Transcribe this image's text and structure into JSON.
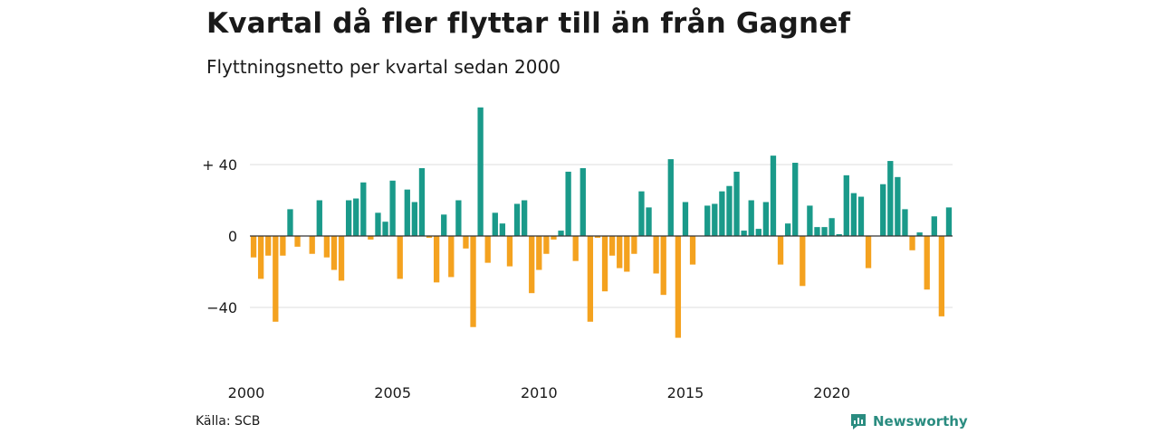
{
  "title": "Kvartal då fler flyttar till än från Gagnef",
  "subtitle": "Flyttningsnetto per kvartal sedan 2000",
  "source": "Källa: SCB",
  "brand": {
    "name": "Newsworthy"
  },
  "colors": {
    "positive": "#1a9a8a",
    "negative": "#f4a21f",
    "gridline": "#dddddd",
    "zeroline": "#333333",
    "brand": "#2a8c80"
  },
  "chart_data": {
    "type": "bar",
    "xlabel": "",
    "ylabel": "",
    "ylim": [
      -60,
      72
    ],
    "y_ticks": [
      {
        "value": 40,
        "label": "+ 40"
      },
      {
        "value": 0,
        "label": "0"
      },
      {
        "value": -40,
        "label": "−40"
      }
    ],
    "x_ticks": [
      {
        "index": 0,
        "label": "2000"
      },
      {
        "index": 20,
        "label": "2005"
      },
      {
        "index": 40,
        "label": "2010"
      },
      {
        "index": 60,
        "label": "2015"
      },
      {
        "index": 80,
        "label": "2020"
      }
    ],
    "grid": true,
    "start": "2000 Q1",
    "values": [
      -12,
      -24,
      -11,
      -48,
      -11,
      15,
      -6,
      0,
      -10,
      20,
      -12,
      -19,
      -25,
      20,
      21,
      30,
      -2,
      13,
      8,
      31,
      -24,
      26,
      19,
      38,
      -1,
      -26,
      12,
      -23,
      20,
      -7,
      -51,
      72,
      -15,
      13,
      7,
      -17,
      18,
      20,
      -32,
      -19,
      -10,
      -2,
      3,
      36,
      -14,
      38,
      -48,
      -1,
      -31,
      -11,
      -18,
      -20,
      -10,
      25,
      16,
      -21,
      -33,
      43,
      -57,
      19,
      -16,
      0,
      17,
      18,
      25,
      28,
      36,
      3,
      20,
      4,
      19,
      45,
      -16,
      7,
      41,
      -28,
      17,
      5,
      5,
      10,
      1,
      34,
      24,
      22,
      -18,
      0,
      29,
      42,
      33,
      15,
      -8,
      2,
      -30,
      11,
      -45,
      16
    ]
  }
}
